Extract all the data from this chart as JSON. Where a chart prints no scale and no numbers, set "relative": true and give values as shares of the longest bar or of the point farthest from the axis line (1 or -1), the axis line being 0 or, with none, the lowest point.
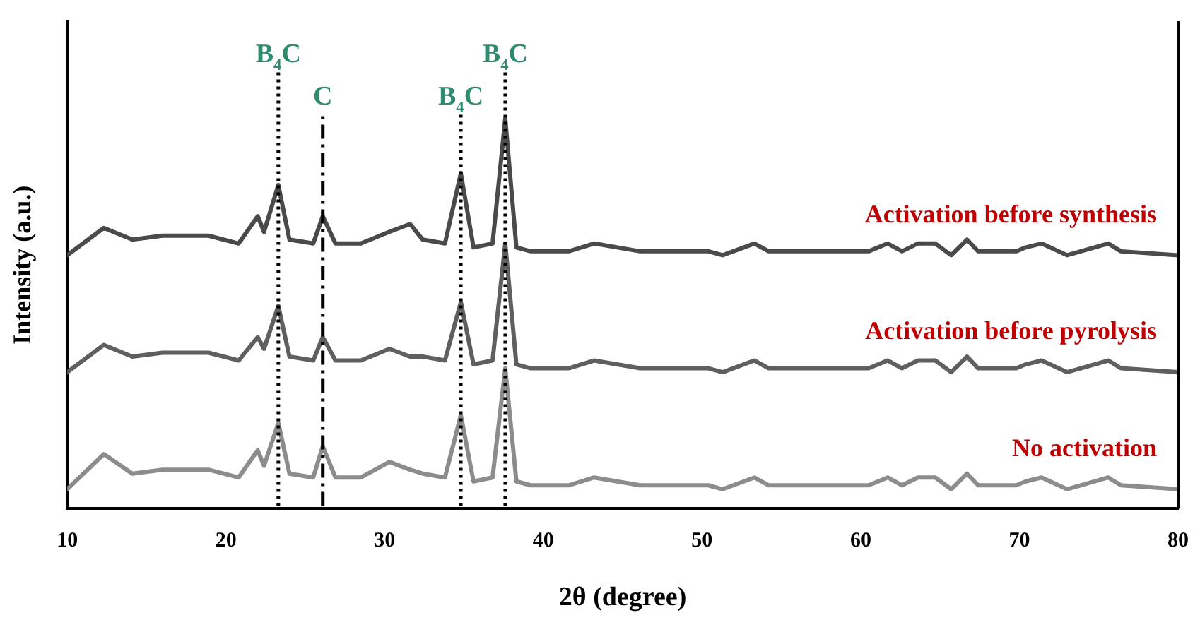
{
  "chart_data": {
    "type": "line",
    "relative": true,
    "xlabel": "2θ (degree)",
    "ylabel": "Intensity (a.u.)",
    "xlim": [
      10,
      80
    ],
    "xticks": [
      10,
      20,
      30,
      40,
      50,
      60,
      70,
      80
    ],
    "tick_labels": "x",
    "grid": false,
    "legend": false,
    "marker": "none",
    "line_style": "solid",
    "x": [
      10,
      12.3,
      14.1,
      16,
      18.9,
      20.8,
      22.0,
      22.4,
      23.3,
      24.0,
      25.5,
      26.1,
      26.9,
      28.5,
      30.3,
      31.6,
      32.4,
      33.8,
      34.8,
      35.6,
      36.8,
      37.6,
      38.3,
      39.2,
      41.6,
      43.2,
      46.1,
      50.4,
      51.3,
      53.3,
      54.2,
      60.5,
      61.7,
      62.6,
      63.6,
      64.7,
      65.7,
      66.7,
      67.4,
      69.8,
      70.4,
      71.4,
      73.0,
      75.6,
      76.4,
      80
    ],
    "series": [
      {
        "name": "Activation before synthesis",
        "color": "#4a4a4a",
        "values": [
          0.65,
          0.72,
          0.69,
          0.7,
          0.7,
          0.68,
          0.75,
          0.71,
          0.83,
          0.69,
          0.68,
          0.75,
          0.68,
          0.68,
          0.71,
          0.73,
          0.69,
          0.68,
          0.86,
          0.67,
          0.68,
          1.0,
          0.67,
          0.66,
          0.66,
          0.68,
          0.66,
          0.66,
          0.65,
          0.68,
          0.66,
          0.66,
          0.68,
          0.66,
          0.68,
          0.68,
          0.65,
          0.69,
          0.66,
          0.66,
          0.67,
          0.68,
          0.65,
          0.68,
          0.66,
          0.65
        ]
      },
      {
        "name": "Activation before pyrolysis",
        "color": "#5f5f5f",
        "values": [
          0.35,
          0.42,
          0.39,
          0.4,
          0.4,
          0.38,
          0.44,
          0.41,
          0.52,
          0.39,
          0.38,
          0.44,
          0.38,
          0.38,
          0.41,
          0.39,
          0.39,
          0.38,
          0.53,
          0.37,
          0.38,
          0.68,
          0.37,
          0.36,
          0.36,
          0.38,
          0.36,
          0.36,
          0.35,
          0.38,
          0.36,
          0.36,
          0.38,
          0.36,
          0.38,
          0.38,
          0.35,
          0.39,
          0.36,
          0.36,
          0.37,
          0.38,
          0.35,
          0.38,
          0.36,
          0.35
        ]
      },
      {
        "name": "No activation",
        "color": "#8c8c8c",
        "values": [
          0.05,
          0.14,
          0.09,
          0.1,
          0.1,
          0.08,
          0.15,
          0.11,
          0.22,
          0.09,
          0.08,
          0.16,
          0.08,
          0.08,
          0.12,
          0.1,
          0.09,
          0.08,
          0.24,
          0.07,
          0.08,
          0.36,
          0.07,
          0.06,
          0.06,
          0.08,
          0.06,
          0.06,
          0.05,
          0.08,
          0.06,
          0.06,
          0.08,
          0.06,
          0.08,
          0.08,
          0.05,
          0.09,
          0.06,
          0.06,
          0.07,
          0.08,
          0.05,
          0.08,
          0.06,
          0.05
        ]
      }
    ],
    "ref_lines": [
      {
        "axis": "x",
        "value": 23.3,
        "label": "B$_{4}$C",
        "color": "#000000",
        "line_style": "dotted"
      },
      {
        "axis": "x",
        "value": 26.1,
        "label": "C",
        "color": "#000000",
        "line_style": "dashed"
      },
      {
        "axis": "x",
        "value": 34.8,
        "label": "B$_{4}$C",
        "color": "#000000",
        "line_style": "dotted"
      },
      {
        "axis": "x",
        "value": 37.6,
        "label": "B$_{4}$C",
        "color": "#000000",
        "line_style": "dotted"
      }
    ]
  }
}
